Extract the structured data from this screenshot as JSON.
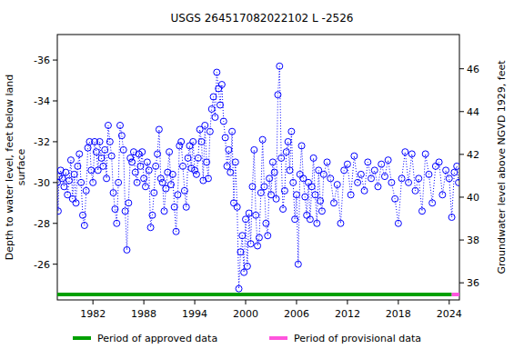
{
  "chart_data": {
    "type": "scatter",
    "title": "USGS 264517082022102 L  -2526",
    "y_label_lines": [
      "Depth to water level, feet below land",
      "surface"
    ],
    "y2_label": "Groundwater level above NGVD 1929, feet",
    "xlim": [
      1977.8,
      2025.2
    ],
    "xticks": [
      1982,
      1988,
      1994,
      2000,
      2006,
      2012,
      2018,
      2024
    ],
    "ylim": [
      -24.25,
      -37.25
    ],
    "yticks": [
      -36,
      -34,
      -32,
      -30,
      -28,
      -26
    ],
    "y2lim": [
      35.2,
      47.6
    ],
    "y2ticks": [
      36,
      38,
      40,
      42,
      44,
      46
    ],
    "grid": false,
    "series": [
      {
        "color": "#0000ff",
        "marker": "circle",
        "line_style": "dotted",
        "x": [
          1977.8,
          1977.9,
          1978.0,
          1978.2,
          1978.4,
          1978.6,
          1978.8,
          1979.0,
          1979.2,
          1979.4,
          1979.6,
          1979.8,
          1980.0,
          1980.2,
          1980.4,
          1980.6,
          1980.8,
          1981.0,
          1981.2,
          1981.4,
          1981.6,
          1981.8,
          1982.0,
          1982.2,
          1982.4,
          1982.6,
          1982.8,
          1983.0,
          1983.2,
          1983.4,
          1983.6,
          1983.8,
          1984.0,
          1984.2,
          1984.4,
          1984.6,
          1984.8,
          1985.0,
          1985.2,
          1985.4,
          1985.6,
          1985.8,
          1986.0,
          1986.2,
          1986.4,
          1986.6,
          1986.8,
          1987.0,
          1987.2,
          1987.4,
          1987.6,
          1987.8,
          1988.0,
          1988.2,
          1988.4,
          1988.6,
          1988.8,
          1989.0,
          1989.2,
          1989.4,
          1989.6,
          1989.8,
          1990.0,
          1990.2,
          1990.4,
          1990.6,
          1990.8,
          1991.0,
          1991.2,
          1991.4,
          1991.6,
          1991.8,
          1992.0,
          1992.2,
          1992.4,
          1992.6,
          1992.8,
          1993.0,
          1993.2,
          1993.4,
          1993.6,
          1993.8,
          1994.0,
          1994.2,
          1994.4,
          1994.6,
          1994.8,
          1995.0,
          1995.2,
          1995.4,
          1995.6,
          1995.8,
          1996.0,
          1996.2,
          1996.4,
          1996.6,
          1996.8,
          1997.0,
          1997.2,
          1997.4,
          1997.6,
          1997.8,
          1998.0,
          1998.2,
          1998.4,
          1998.6,
          1998.8,
          1999.0,
          1999.2,
          1999.4,
          1999.6,
          1999.8,
          2000.0,
          2000.2,
          2000.4,
          2000.6,
          2000.8,
          2001.0,
          2001.2,
          2001.4,
          2001.6,
          2001.8,
          2002.0,
          2002.2,
          2002.4,
          2002.6,
          2002.8,
          2003.0,
          2003.2,
          2003.4,
          2003.6,
          2003.8,
          2004.0,
          2004.2,
          2004.4,
          2004.6,
          2004.8,
          2005.0,
          2005.2,
          2005.4,
          2005.6,
          2005.8,
          2006.0,
          2006.2,
          2006.4,
          2006.6,
          2006.8,
          2007.0,
          2007.2,
          2007.4,
          2007.6,
          2007.8,
          2008.0,
          2008.2,
          2008.4,
          2008.6,
          2008.8,
          2009.0,
          2009.2,
          2009.6,
          2010.0,
          2010.4,
          2010.8,
          2011.2,
          2011.6,
          2012.0,
          2012.4,
          2012.8,
          2013.2,
          2013.6,
          2014.0,
          2014.4,
          2014.8,
          2015.2,
          2015.6,
          2016.0,
          2016.4,
          2016.8,
          2017.2,
          2017.6,
          2018.0,
          2018.4,
          2018.8,
          2019.2,
          2019.6,
          2020.0,
          2020.4,
          2020.8,
          2021.2,
          2021.6,
          2022.0,
          2022.4,
          2022.8,
          2023.2,
          2023.6,
          2024.0,
          2024.3,
          2024.6,
          2024.9,
          2025.1
        ],
        "values": [
          -30.0,
          -28.6,
          -30.3,
          -30.6,
          -30.2,
          -29.8,
          -30.5,
          -29.4,
          -30.1,
          -31.1,
          -29.2,
          -30.4,
          -29.0,
          -30.8,
          -31.4,
          -30.0,
          -28.4,
          -27.9,
          -29.6,
          -31.7,
          -32.0,
          -30.6,
          -30.0,
          -32.0,
          -31.5,
          -30.6,
          -32.0,
          -31.2,
          -30.8,
          -31.6,
          -30.2,
          -32.8,
          -32.0,
          -31.3,
          -29.5,
          -28.7,
          -28.0,
          -30.0,
          -32.8,
          -32.3,
          -31.6,
          -28.6,
          -26.7,
          -29.0,
          -31.2,
          -31.0,
          -31.5,
          -30.5,
          -30.0,
          -31.4,
          -30.8,
          -31.5,
          -30.2,
          -29.8,
          -31.0,
          -30.6,
          -27.8,
          -28.4,
          -29.5,
          -30.8,
          -31.4,
          -32.6,
          -30.2,
          -30.0,
          -28.6,
          -29.7,
          -30.5,
          -31.5,
          -29.9,
          -30.4,
          -28.8,
          -27.6,
          -29.4,
          -31.8,
          -32.0,
          -30.8,
          -29.6,
          -28.8,
          -31.2,
          -31.8,
          -30.7,
          -32.0,
          -30.6,
          -30.4,
          -31.2,
          -32.6,
          -32.0,
          -30.1,
          -32.8,
          -31.0,
          -30.2,
          -32.5,
          -33.6,
          -34.2,
          -33.2,
          -35.4,
          -34.6,
          -33.8,
          -34.8,
          -33.0,
          -32.2,
          -30.8,
          -31.6,
          -30.5,
          -32.5,
          -29.0,
          -31.0,
          -28.8,
          -24.8,
          -26.6,
          -27.4,
          -25.6,
          -28.2,
          -25.9,
          -28.5,
          -27.0,
          -29.8,
          -31.6,
          -28.4,
          -26.9,
          -27.3,
          -29.5,
          -32.1,
          -29.8,
          -28.0,
          -27.4,
          -30.2,
          -29.4,
          -31.0,
          -30.5,
          -29.2,
          -34.3,
          -35.7,
          -31.2,
          -28.7,
          -29.6,
          -31.5,
          -32.0,
          -30.6,
          -32.5,
          -30.0,
          -28.2,
          -29.4,
          -26.0,
          -30.4,
          -31.8,
          -30.2,
          -29.3,
          -28.4,
          -30.0,
          -28.2,
          -29.8,
          -31.2,
          -29.4,
          -28.0,
          -30.6,
          -29.1,
          -28.6,
          -30.4,
          -31.0,
          -30.2,
          -29.0,
          -29.9,
          -28.0,
          -30.6,
          -30.9,
          -29.4,
          -31.3,
          -30.0,
          -30.4,
          -29.6,
          -31.0,
          -30.2,
          -30.6,
          -29.8,
          -30.9,
          -30.3,
          -31.1,
          -30.0,
          -29.2,
          -28.0,
          -30.2,
          -31.5,
          -30.0,
          -31.4,
          -29.6,
          -30.2,
          -28.6,
          -31.4,
          -30.4,
          -29.0,
          -30.8,
          -31.0,
          -29.4,
          -30.6,
          -30.2,
          -28.3,
          -30.5,
          -30.8,
          -30.0
        ]
      }
    ],
    "periods": [
      {
        "name": "Period of approved data",
        "color": "#00a000",
        "start": 1977.8,
        "end": 2024.3
      },
      {
        "name": "Period of provisional data",
        "color": "#ff55dd",
        "start": 2024.3,
        "end": 2025.2
      }
    ]
  }
}
